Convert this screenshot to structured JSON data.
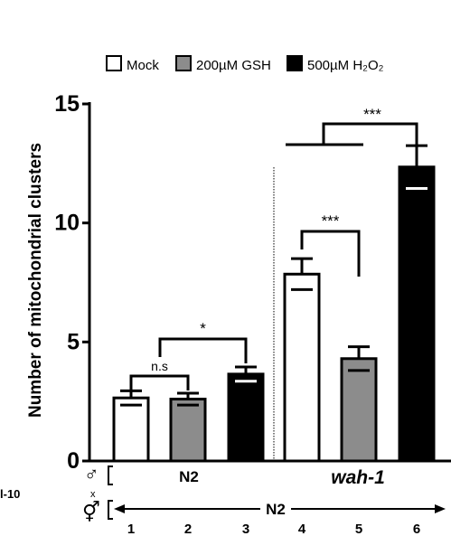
{
  "chart_data": {
    "type": "bar",
    "ylabel": "Number of mitochondrial clusters",
    "ylim": [
      0,
      15
    ],
    "y_ticks": [
      0,
      5,
      10,
      15
    ],
    "categories": [
      "1",
      "2",
      "3",
      "4",
      "5",
      "6"
    ],
    "values": [
      2.65,
      2.6,
      3.65,
      7.85,
      4.3,
      12.35
    ],
    "errors": [
      0.3,
      0.25,
      0.3,
      0.65,
      0.5,
      0.9
    ],
    "treatments": [
      "Mock",
      "200µM GSH",
      "500µM H2O2",
      "Mock",
      "200µM GSH",
      "500µM H2O2"
    ],
    "legend": [
      {
        "label": "Mock",
        "color": "#ffffff"
      },
      {
        "label": "200µM GSH",
        "color": "#8c8c8c"
      },
      {
        "label": "500µM H₂O₂",
        "color": "#000000"
      }
    ],
    "legend_position": "top",
    "groups": [
      {
        "label": "N2",
        "from": 1,
        "to": 3
      },
      {
        "label": "wah-1",
        "from": 4,
        "to": 6
      }
    ],
    "cross": {
      "male_symbol": "♂",
      "x_symbol": "x",
      "herm_symbol": "⚥",
      "herm_label": "N2"
    },
    "significance": [
      {
        "from": 1,
        "to": 2,
        "label": "n.s"
      },
      {
        "from": 1,
        "to": 3,
        "label": "*"
      },
      {
        "from": 4,
        "to": 5,
        "label": "***"
      },
      {
        "from": 4,
        "to": 6,
        "label": "***"
      }
    ],
    "cut_label": "l-10"
  }
}
